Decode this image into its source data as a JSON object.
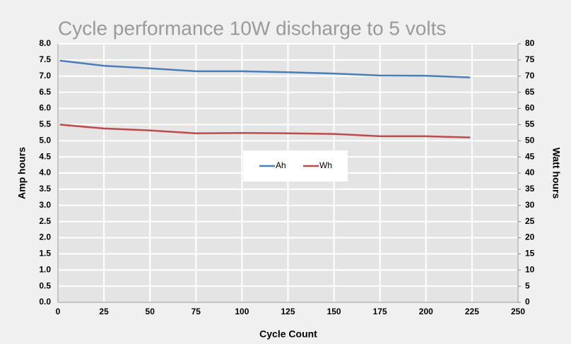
{
  "chart_data": {
    "type": "line",
    "title": "Cycle performance 10W discharge to 5 volts",
    "xlabel": "Cycle Count",
    "ylabel": "Amp hours",
    "y2label": "Watt hours",
    "x": [
      1,
      25,
      50,
      75,
      100,
      125,
      150,
      175,
      200,
      224
    ],
    "series": [
      {
        "name": "Ah",
        "color": "#4a7ebb",
        "values": [
          7.48,
          7.32,
          7.24,
          7.15,
          7.15,
          7.12,
          7.08,
          7.02,
          7.01,
          6.96
        ]
      },
      {
        "name": "Wh",
        "color": "#be4b48",
        "axis": "y2",
        "values": [
          55.0,
          53.8,
          53.2,
          52.3,
          52.4,
          52.3,
          52.1,
          51.4,
          51.4,
          51.0
        ]
      }
    ],
    "xlim": [
      0,
      250
    ],
    "xticks": [
      0,
      25,
      50,
      75,
      100,
      125,
      150,
      175,
      200,
      225,
      250
    ],
    "ylim": [
      0,
      8
    ],
    "yticks": [
      {
        "value": 0,
        "label": "0.0"
      },
      0.5,
      {
        "value": 1,
        "label": "1.0"
      },
      1.5,
      {
        "value": 2,
        "label": "2.0"
      },
      2.5,
      {
        "value": 3,
        "label": "3.0"
      },
      3.5,
      {
        "value": 4,
        "label": "4.0"
      },
      4.5,
      {
        "value": 5,
        "label": "5.0"
      },
      5.5,
      {
        "value": 6,
        "label": "6.0"
      },
      6.5,
      {
        "value": 7,
        "label": "7.0"
      },
      7.5,
      {
        "value": 8,
        "label": "8.0"
      }
    ],
    "y2lim": [
      0,
      80
    ],
    "y2ticks": [
      0,
      5,
      10,
      15,
      20,
      25,
      30,
      35,
      40,
      45,
      50,
      55,
      60,
      65,
      70,
      75,
      80
    ],
    "grid": true
  }
}
